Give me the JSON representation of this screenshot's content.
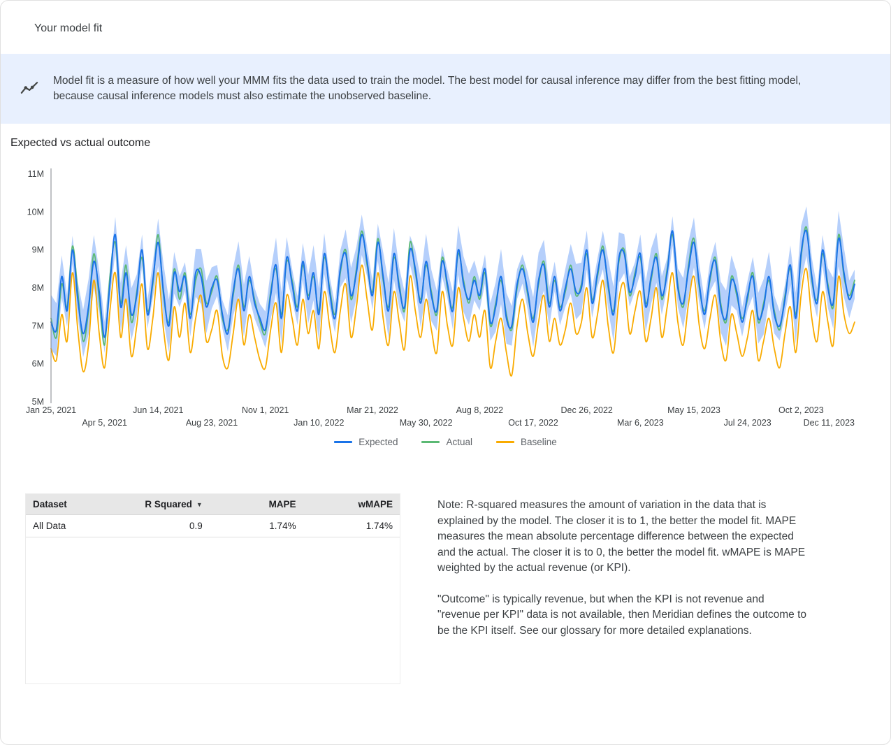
{
  "page": {
    "title": "Your model fit"
  },
  "banner": {
    "text": "Model fit is a measure of how well your MMM fits the data used to train the model. The best model for causal inference may differ from the best fitting model, because causal inference models must also estimate the unobserved baseline."
  },
  "section": {
    "title": "Expected vs actual outcome"
  },
  "chart_data": {
    "type": "line",
    "title": "Expected vs actual outcome",
    "x_unit": "weekly",
    "x_tick_labels": [
      "Jan 25, 2021",
      "Apr 5, 2021",
      "Jun 14, 2021",
      "Aug 23, 2021",
      "Nov 1, 2021",
      "Jan 10, 2022",
      "Mar 21, 2022",
      "May 30, 2022",
      "Aug 8, 2022",
      "Oct 17, 2022",
      "Dec 26, 2022",
      "Mar 6, 2023",
      "May 15, 2023",
      "Jul 24, 2023",
      "Oct 2, 2023",
      "Dec 11, 2023"
    ],
    "x_tick_step": 10,
    "y_tick_labels": [
      "5M",
      "6M",
      "7M",
      "8M",
      "9M",
      "10M",
      "11M"
    ],
    "ylim": [
      5,
      11
    ],
    "values_unit": "millions",
    "series": [
      {
        "name": "Expected",
        "color": "#1a73e8",
        "values": [
          7.1,
          6.9,
          8.3,
          7.4,
          9.0,
          7.7,
          6.8,
          7.5,
          8.7,
          7.9,
          6.7,
          8.1,
          9.4,
          7.5,
          8.4,
          7.3,
          7.8,
          9.0,
          7.3,
          8.2,
          9.2,
          7.9,
          7.0,
          8.4,
          7.9,
          8.3,
          7.2,
          8.4,
          8.3,
          7.5,
          8.0,
          8.2,
          7.3,
          6.8,
          7.9,
          8.5,
          7.4,
          8.3,
          7.6,
          7.2,
          6.9,
          7.8,
          8.6,
          7.2,
          8.8,
          8.1,
          7.4,
          8.7,
          7.7,
          8.4,
          7.3,
          8.9,
          7.9,
          7.2,
          8.5,
          8.9,
          7.8,
          8.4,
          9.4,
          8.7,
          7.8,
          9.2,
          8.3,
          7.4,
          8.9,
          8.0,
          7.5,
          9.0,
          8.5,
          7.6,
          8.7,
          7.8,
          7.4,
          8.7,
          8.1,
          7.4,
          9.0,
          8.1,
          7.7,
          8.2,
          7.8,
          8.5,
          7.1,
          7.5,
          8.3,
          7.2,
          7.0,
          8.1,
          8.5,
          7.9,
          7.1,
          8.2,
          8.6,
          7.5,
          8.3,
          7.4,
          8.0,
          8.5,
          7.9,
          8.0,
          9.0,
          7.6,
          8.4,
          9.0,
          8.1,
          7.3,
          8.8,
          8.9,
          7.9,
          8.3,
          8.9,
          7.5,
          8.3,
          8.8,
          7.8,
          8.4,
          9.5,
          8.0,
          7.6,
          8.5,
          9.2,
          8.1,
          7.3,
          8.3,
          8.7,
          7.5,
          7.2,
          8.2,
          7.9,
          7.1,
          7.8,
          8.3,
          7.2,
          7.5,
          8.3,
          7.3,
          7.0,
          7.7,
          8.6,
          7.2,
          8.9,
          9.5,
          8.3,
          7.6,
          9.0,
          8.0,
          7.6,
          9.3,
          8.4,
          7.7,
          8.1
        ]
      },
      {
        "name": "Actual",
        "color": "#5bb974",
        "values": [
          7.2,
          6.7,
          8.1,
          7.5,
          9.1,
          7.9,
          6.6,
          7.4,
          8.9,
          7.7,
          6.5,
          8.3,
          9.2,
          7.6,
          8.6,
          7.1,
          7.9,
          8.8,
          7.4,
          8.1,
          9.4,
          7.8,
          7.1,
          8.5,
          7.7,
          8.4,
          7.3,
          8.2,
          8.5,
          7.6,
          7.9,
          8.3,
          7.2,
          6.9,
          7.8,
          8.6,
          7.5,
          8.2,
          7.7,
          7.1,
          6.8,
          7.9,
          8.5,
          7.3,
          8.7,
          8.2,
          7.5,
          8.6,
          7.8,
          8.3,
          7.4,
          8.8,
          8.0,
          7.3,
          8.4,
          9.0,
          7.7,
          8.5,
          9.5,
          8.6,
          7.9,
          9.3,
          8.2,
          7.5,
          8.8,
          8.1,
          7.4,
          9.2,
          8.4,
          7.7,
          8.6,
          7.9,
          7.3,
          8.8,
          8.0,
          7.5,
          8.9,
          8.2,
          7.6,
          8.3,
          7.7,
          8.4,
          7.0,
          7.6,
          8.2,
          7.3,
          6.9,
          8.0,
          8.6,
          7.8,
          7.2,
          8.1,
          8.7,
          7.6,
          8.2,
          7.5,
          7.9,
          8.6,
          7.8,
          8.1,
          8.9,
          7.7,
          8.3,
          9.1,
          8.0,
          7.4,
          8.7,
          9.0,
          7.8,
          8.4,
          8.8,
          7.6,
          8.2,
          8.9,
          7.7,
          8.5,
          9.4,
          8.1,
          7.5,
          8.6,
          9.3,
          8.0,
          7.4,
          8.2,
          8.8,
          7.6,
          7.1,
          8.3,
          7.8,
          7.2,
          7.7,
          8.4,
          7.1,
          7.6,
          8.2,
          7.4,
          6.9,
          7.8,
          8.5,
          7.3,
          8.8,
          9.6,
          8.2,
          7.7,
          8.9,
          8.1,
          7.5,
          9.4,
          8.3,
          7.8,
          8.2
        ]
      },
      {
        "name": "Baseline",
        "color": "#f9ab00",
        "values": [
          6.4,
          6.1,
          7.3,
          6.6,
          8.4,
          6.9,
          5.8,
          6.5,
          8.2,
          6.8,
          5.9,
          7.4,
          8.4,
          6.7,
          7.7,
          6.2,
          7.0,
          8.1,
          6.4,
          7.2,
          8.4,
          6.9,
          6.1,
          7.5,
          6.7,
          7.6,
          6.3,
          7.2,
          7.8,
          6.6,
          6.9,
          7.4,
          6.2,
          5.9,
          6.8,
          7.7,
          6.5,
          7.3,
          6.7,
          6.1,
          5.9,
          6.9,
          7.6,
          6.3,
          7.8,
          7.2,
          6.5,
          7.7,
          6.8,
          7.4,
          6.4,
          7.9,
          7.0,
          6.3,
          7.4,
          8.1,
          6.7,
          7.5,
          8.6,
          7.7,
          6.9,
          8.4,
          7.2,
          6.5,
          7.9,
          7.1,
          6.4,
          8.3,
          7.4,
          6.7,
          7.7,
          6.9,
          6.3,
          7.9,
          7.0,
          6.5,
          8.0,
          7.2,
          6.6,
          7.3,
          6.7,
          7.4,
          5.9,
          6.6,
          7.2,
          6.3,
          5.7,
          7.0,
          7.7,
          6.8,
          6.2,
          7.1,
          7.8,
          6.6,
          7.2,
          6.5,
          6.9,
          7.6,
          6.8,
          7.1,
          8.0,
          6.7,
          7.3,
          8.2,
          7.0,
          6.3,
          7.7,
          8.1,
          6.8,
          7.4,
          7.9,
          6.6,
          7.2,
          8.0,
          6.7,
          7.5,
          8.4,
          7.1,
          6.5,
          7.6,
          8.3,
          7.0,
          6.4,
          7.2,
          7.8,
          6.6,
          6.1,
          7.3,
          6.8,
          6.2,
          6.7,
          7.4,
          6.1,
          6.6,
          7.2,
          6.4,
          5.9,
          6.8,
          7.5,
          6.3,
          7.8,
          8.5,
          7.2,
          6.6,
          7.9,
          7.1,
          6.5,
          8.3,
          7.3,
          6.8,
          7.1
        ]
      }
    ],
    "ci_band": {
      "series": "Expected",
      "color": "#a8c7fa",
      "opacity": 0.85,
      "halfwidth_approx": 0.55
    }
  },
  "legend": {
    "items": [
      {
        "label": "Expected",
        "color": "#1a73e8"
      },
      {
        "label": "Actual",
        "color": "#5bb974"
      },
      {
        "label": "Baseline",
        "color": "#f9ab00"
      }
    ]
  },
  "table": {
    "columns": [
      "Dataset",
      "R Squared",
      "MAPE",
      "wMAPE"
    ],
    "sort_column": "R Squared",
    "sort_icon": "▼",
    "rows": [
      [
        "All Data",
        "0.9",
        "1.74%",
        "1.74%"
      ]
    ]
  },
  "note": {
    "paragraph1": "Note: R-squared measures the amount of variation in the data that is explained by the model. The closer it is to 1, the better the model fit. MAPE measures the mean absolute percentage difference between the expected and the actual. The closer it is to 0, the better the model fit. wMAPE is MAPE weighted by the actual revenue (or KPI).",
    "paragraph2": "\"Outcome\" is typically revenue, but when the KPI is not revenue and \"revenue per KPI\" data is not available, then Meridian defines the outcome to be the KPI itself. See our glossary for more detailed explanations."
  }
}
